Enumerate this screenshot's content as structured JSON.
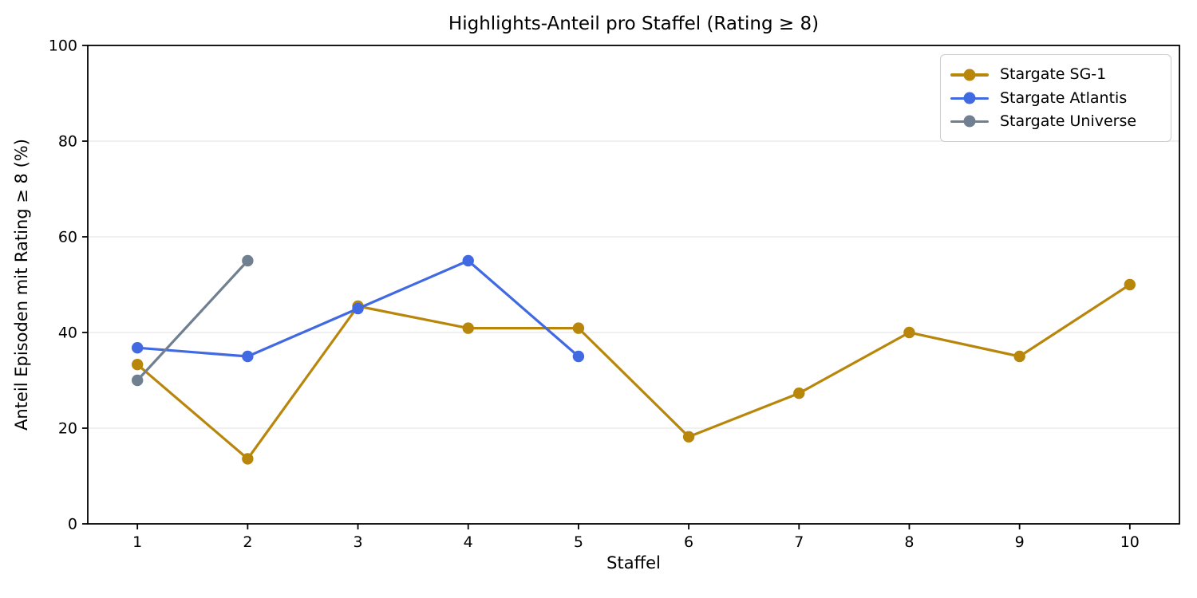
{
  "chart_data": {
    "type": "line",
    "title": "Highlights-Anteil pro Staffel (Rating ≥ 8)",
    "xlabel": "Staffel",
    "ylabel": "Anteil Episoden mit Rating ≥ 8 (%)",
    "xlim": [
      0.55,
      10.45
    ],
    "ylim": [
      0,
      100
    ],
    "x_ticks": [
      1,
      2,
      3,
      4,
      5,
      6,
      7,
      8,
      9,
      10
    ],
    "y_ticks": [
      0,
      20,
      40,
      60,
      80,
      100
    ],
    "grid": "horizontal",
    "gridline_color": "#e8e8e8",
    "axis_color": "#000000",
    "legend_position": "upper right",
    "series": [
      {
        "name": "Stargate SG-1",
        "color": "#B8860B",
        "x": [
          1,
          2,
          3,
          4,
          5,
          6,
          7,
          8,
          9,
          10
        ],
        "values": [
          33.3,
          13.6,
          45.5,
          40.9,
          40.9,
          18.2,
          27.3,
          40,
          35,
          50
        ]
      },
      {
        "name": "Stargate Atlantis",
        "color": "#4169E1",
        "x": [
          1,
          2,
          3,
          4,
          5
        ],
        "values": [
          36.8,
          35,
          45,
          55,
          35
        ]
      },
      {
        "name": "Stargate Universe",
        "color": "#708090",
        "x": [
          1,
          2
        ],
        "values": [
          30,
          55
        ]
      }
    ]
  }
}
